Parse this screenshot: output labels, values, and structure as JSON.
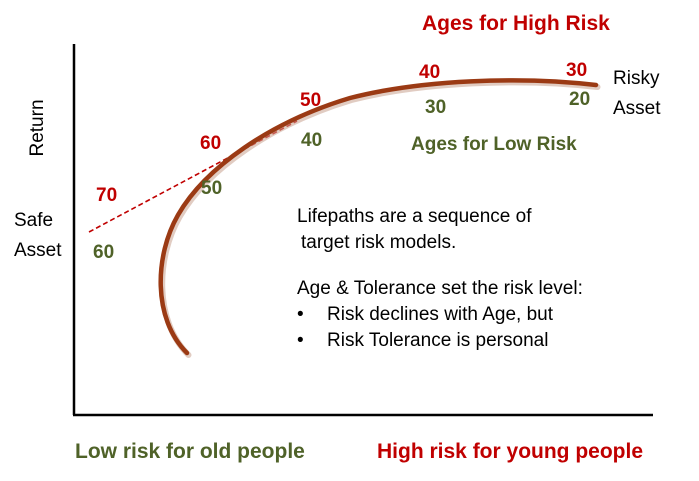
{
  "titles": {
    "high_risk_ages": "Ages for High Risk",
    "low_risk_ages": "Ages for Low Risk"
  },
  "axes": {
    "y_label": "Return"
  },
  "endpoints": {
    "risky_line1": "Risky",
    "risky_line2": "Asset",
    "safe_line1": "Safe",
    "safe_line2": "Asset"
  },
  "high_risk_ages": [
    "70",
    "60",
    "50",
    "40",
    "30"
  ],
  "low_risk_ages": [
    "60",
    "50",
    "40",
    "30",
    "20"
  ],
  "description": {
    "line1": "Lifepaths are a sequence of",
    "line2": "target risk models.",
    "line3": "Age & Tolerance set the risk level:",
    "bullets": [
      "Risk declines with Age, but",
      "Risk Tolerance is personal"
    ]
  },
  "footer": {
    "low": "Low risk for old people",
    "high": "High risk for young people"
  },
  "colors": {
    "high_risk": "#c00000",
    "low_risk": "#4f6228",
    "curve": "#9b3a14"
  }
}
